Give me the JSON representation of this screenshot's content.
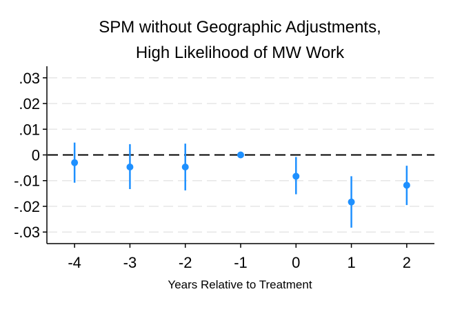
{
  "chart_data": {
    "type": "scatter",
    "title": [
      "SPM without Geographic Adjustments,",
      "High Likelihood of MW Work"
    ],
    "xlabel": "Years Relative to Treatment",
    "ylabel": "",
    "x": [
      -4,
      -3,
      -2,
      -1,
      0,
      1,
      2
    ],
    "x_tick_labels": [
      "-4",
      "-3",
      "-2",
      "-1",
      "0",
      "1",
      "2"
    ],
    "y_ticks": [
      0.03,
      0.02,
      0.01,
      0,
      -0.01,
      -0.02,
      -0.03
    ],
    "y_tick_labels": [
      ".03",
      ".02",
      ".01",
      "0",
      "-.01",
      "-.02",
      "-.03"
    ],
    "ylim": [
      -0.0345,
      0.0345
    ],
    "xlim": [
      -4.5,
      2.5
    ],
    "series": [
      {
        "estimates": [
          -0.003,
          -0.0047,
          -0.0047,
          0.0,
          -0.0083,
          -0.0183,
          -0.0118
        ],
        "ci_low": [
          -0.0108,
          -0.0133,
          -0.0138,
          0.0,
          -0.0153,
          -0.0283,
          -0.0195
        ],
        "ci_high": [
          0.0048,
          0.0042,
          0.0044,
          0.0,
          -0.0008,
          -0.0083,
          -0.0042
        ]
      }
    ],
    "reference_line": 0,
    "grid": true,
    "colors": {
      "marker": "#1e90ff",
      "grid": "#e6e6e6",
      "axis": "#000000"
    }
  }
}
